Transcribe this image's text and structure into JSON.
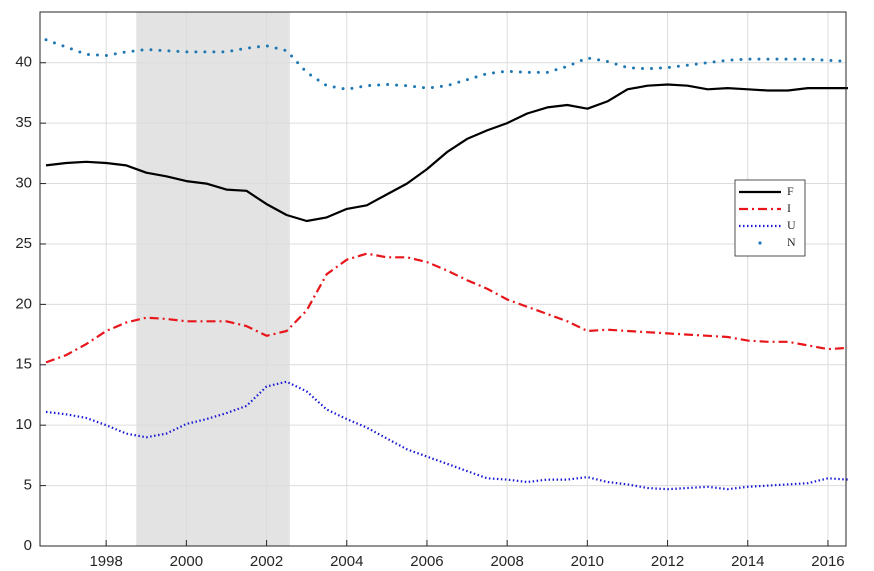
{
  "chart_data": {
    "type": "line",
    "x": [
      1996.5,
      1997,
      1997.5,
      1998,
      1998.5,
      1999,
      1999.5,
      2000,
      2000.5,
      2001,
      2001.5,
      2002,
      2002.5,
      2003,
      2003.5,
      2004,
      2004.5,
      2005,
      2005.5,
      2006,
      2006.5,
      2007,
      2007.5,
      2008,
      2008.5,
      2009,
      2009.5,
      2010,
      2010.5,
      2011,
      2011.5,
      2012,
      2012.5,
      2013,
      2013.5,
      2014,
      2014.5,
      2015,
      2015.5,
      2016,
      2016.5
    ],
    "series": [
      {
        "name": "F",
        "color": "#000000",
        "style": "solid",
        "values": [
          31.5,
          31.7,
          31.8,
          31.7,
          31.5,
          30.9,
          30.6,
          30.2,
          30.0,
          29.5,
          29.4,
          28.3,
          27.4,
          26.9,
          27.2,
          27.9,
          28.2,
          29.1,
          30.0,
          31.2,
          32.6,
          33.7,
          34.4,
          35.0,
          35.8,
          36.3,
          36.5,
          36.2,
          36.8,
          37.8,
          38.1,
          38.2,
          38.1,
          37.8,
          37.9,
          37.8,
          37.7,
          37.7,
          37.9,
          37.9,
          37.9
        ]
      },
      {
        "name": "I",
        "color": "#e8161b",
        "style": "dashdot",
        "values": [
          15.2,
          15.8,
          16.7,
          17.8,
          18.5,
          18.9,
          18.8,
          18.6,
          18.6,
          18.6,
          18.2,
          17.4,
          17.8,
          19.5,
          22.5,
          23.7,
          24.2,
          23.9,
          23.9,
          23.5,
          22.8,
          22.0,
          21.3,
          20.4,
          19.8,
          19.2,
          18.6,
          17.8,
          17.9,
          17.8,
          17.7,
          17.6,
          17.5,
          17.4,
          17.3,
          17.0,
          16.9,
          16.9,
          16.6,
          16.3,
          16.4
        ]
      },
      {
        "name": "U",
        "color": "#1a1ad6",
        "style": "dotted",
        "values": [
          11.1,
          10.9,
          10.6,
          10.0,
          9.3,
          9.0,
          9.3,
          10.1,
          10.5,
          11.0,
          11.6,
          13.2,
          13.6,
          12.8,
          11.3,
          10.5,
          9.8,
          8.9,
          8.0,
          7.4,
          6.8,
          6.2,
          5.6,
          5.5,
          5.3,
          5.5,
          5.5,
          5.7,
          5.3,
          5.1,
          4.8,
          4.7,
          4.8,
          4.9,
          4.7,
          4.9,
          5.0,
          5.1,
          5.2,
          5.6,
          5.5
        ]
      },
      {
        "name": "N",
        "color": "#1f78b4",
        "style": "dots",
        "values": [
          41.9,
          41.3,
          40.7,
          40.6,
          40.9,
          41.1,
          41.0,
          40.9,
          40.9,
          40.9,
          41.2,
          41.4,
          41.0,
          39.2,
          38.1,
          37.8,
          38.1,
          38.2,
          38.1,
          37.9,
          38.1,
          38.6,
          39.1,
          39.3,
          39.2,
          39.2,
          39.7,
          40.4,
          40.1,
          39.6,
          39.5,
          39.6,
          39.8,
          40.0,
          40.2,
          40.3,
          40.3,
          40.3,
          40.3,
          40.2,
          40.1
        ]
      }
    ],
    "shade": [
      1998.75,
      2002.58
    ],
    "xlim": [
      1996.35,
      2016.45
    ],
    "xticks": [
      1998,
      2000,
      2002,
      2004,
      2006,
      2008,
      2010,
      2012,
      2014,
      2016
    ],
    "ylim": [
      0,
      44.2
    ],
    "yticks": [
      0,
      5,
      10,
      15,
      20,
      25,
      30,
      35,
      40
    ],
    "grid": true,
    "legend": "right"
  }
}
